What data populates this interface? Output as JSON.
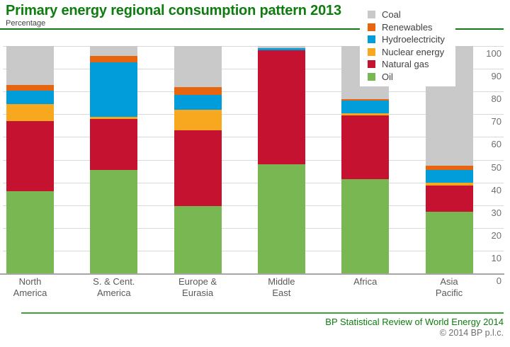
{
  "header": {
    "title": "Primary energy regional consumption pattern 2013",
    "subtitle": "Percentage"
  },
  "legend": {
    "items": [
      {
        "label": "Coal",
        "color": "#c9c9c9"
      },
      {
        "label": "Renewables",
        "color": "#e8650f"
      },
      {
        "label": "Hydroelectricity",
        "color": "#009dda"
      },
      {
        "label": "Nuclear energy",
        "color": "#f7a81f"
      },
      {
        "label": "Natural gas",
        "color": "#c41230"
      },
      {
        "label": "Oil",
        "color": "#79b752"
      }
    ]
  },
  "chart_data": {
    "type": "bar",
    "stacked": true,
    "title": "Primary energy regional consumption pattern 2013",
    "ylabel": "Percentage",
    "ylim": [
      0,
      100
    ],
    "yticks": [
      0,
      10,
      20,
      30,
      40,
      50,
      60,
      70,
      80,
      90,
      100
    ],
    "grid": true,
    "legend_position": "top-right",
    "categories": [
      "North\nAmerica",
      "S. & Cent.\nAmerica",
      "Europe &\nEurasia",
      "Middle\nEast",
      "Africa",
      "Asia\nPacific"
    ],
    "series": [
      {
        "name": "Oil",
        "color": "#79b752",
        "values": [
          36,
          45.5,
          29.5,
          48,
          41.5,
          27
        ]
      },
      {
        "name": "Natural gas",
        "color": "#c41230",
        "values": [
          31,
          22.5,
          33.5,
          50,
          28,
          11.5
        ]
      },
      {
        "name": "Nuclear energy",
        "color": "#f7a81f",
        "values": [
          7.5,
          0.8,
          9,
          0,
          1,
          1.5
        ]
      },
      {
        "name": "Hydroelectricity",
        "color": "#009dda",
        "values": [
          6,
          24,
          6.5,
          1,
          5.5,
          5.5
        ]
      },
      {
        "name": "Renewables",
        "color": "#e8650f",
        "values": [
          2.5,
          2.7,
          3.5,
          0,
          0.5,
          2
        ]
      },
      {
        "name": "Coal",
        "color": "#c9c9c9",
        "values": [
          17,
          4.5,
          18,
          1,
          23.5,
          52.5
        ]
      }
    ]
  },
  "footer": {
    "source": "BP Statistical Review of World Energy 2014",
    "copyright": "© 2014 BP p.l.c."
  }
}
